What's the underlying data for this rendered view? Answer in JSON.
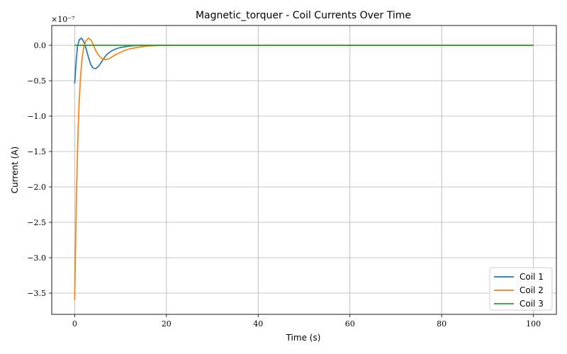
{
  "chart_data": {
    "type": "line",
    "title": "Magnetic_torquer - Coil Currents Over Time",
    "xlabel": "Time (s)",
    "ylabel": "Current (A)",
    "y_scale_factor": "×10⁻⁷",
    "xlim": [
      -5,
      105
    ],
    "ylim": [
      -3.8,
      0.28
    ],
    "x_ticks": [
      0,
      20,
      40,
      60,
      80,
      100
    ],
    "x_tick_labels": [
      "0",
      "20",
      "40",
      "60",
      "80",
      "100"
    ],
    "y_ticks": [
      0.0,
      -0.5,
      -1.0,
      -1.5,
      -2.0,
      -2.5,
      -3.0,
      -3.5
    ],
    "y_tick_labels": [
      "0.0",
      "−0.5",
      "−1.0",
      "−1.5",
      "−2.0",
      "−2.5",
      "−3.0",
      "−3.5"
    ],
    "grid": true,
    "legend_position": "bottom-right",
    "series": [
      {
        "name": "Coil 1",
        "color": "#1f77b4",
        "x": [
          0,
          0.3,
          0.6,
          1.0,
          1.5,
          2.0,
          2.5,
          3.0,
          3.5,
          4.0,
          4.5,
          5.0,
          5.5,
          6.0,
          6.5,
          7.0,
          8.0,
          9.0,
          10.0,
          11.0,
          12.0,
          13.0,
          14.0,
          15.0,
          16.0,
          18.0,
          20.0,
          30.0,
          100.0
        ],
        "y": [
          -0.54,
          -0.25,
          -0.02,
          0.08,
          0.1,
          0.05,
          -0.05,
          -0.17,
          -0.27,
          -0.32,
          -0.33,
          -0.31,
          -0.27,
          -0.22,
          -0.17,
          -0.13,
          -0.08,
          -0.05,
          -0.03,
          -0.02,
          -0.01,
          -0.005,
          0.0,
          0.0,
          0.0,
          0.0,
          0.0,
          0.0,
          0.0
        ]
      },
      {
        "name": "Coil 2",
        "color": "#ff7f0e",
        "x": [
          0,
          0.2,
          0.4,
          0.6,
          0.8,
          1.0,
          1.3,
          1.6,
          2.0,
          2.5,
          3.0,
          3.5,
          4.0,
          4.5,
          5.0,
          5.5,
          6.0,
          6.5,
          7.0,
          7.5,
          8.0,
          9.0,
          10.0,
          11.0,
          12.0,
          14.0,
          16.0,
          18.0,
          20.0,
          30.0,
          100.0
        ],
        "y": [
          -3.6,
          -2.8,
          -2.1,
          -1.55,
          -1.12,
          -0.78,
          -0.43,
          -0.2,
          -0.02,
          0.07,
          0.1,
          0.08,
          0.02,
          -0.06,
          -0.12,
          -0.16,
          -0.19,
          -0.2,
          -0.2,
          -0.19,
          -0.17,
          -0.13,
          -0.1,
          -0.07,
          -0.05,
          -0.025,
          -0.01,
          -0.004,
          0.0,
          0.0,
          0.0
        ]
      },
      {
        "name": "Coil 3",
        "color": "#2ca02c",
        "x": [
          0,
          100
        ],
        "y": [
          0.0,
          0.0
        ]
      }
    ]
  }
}
